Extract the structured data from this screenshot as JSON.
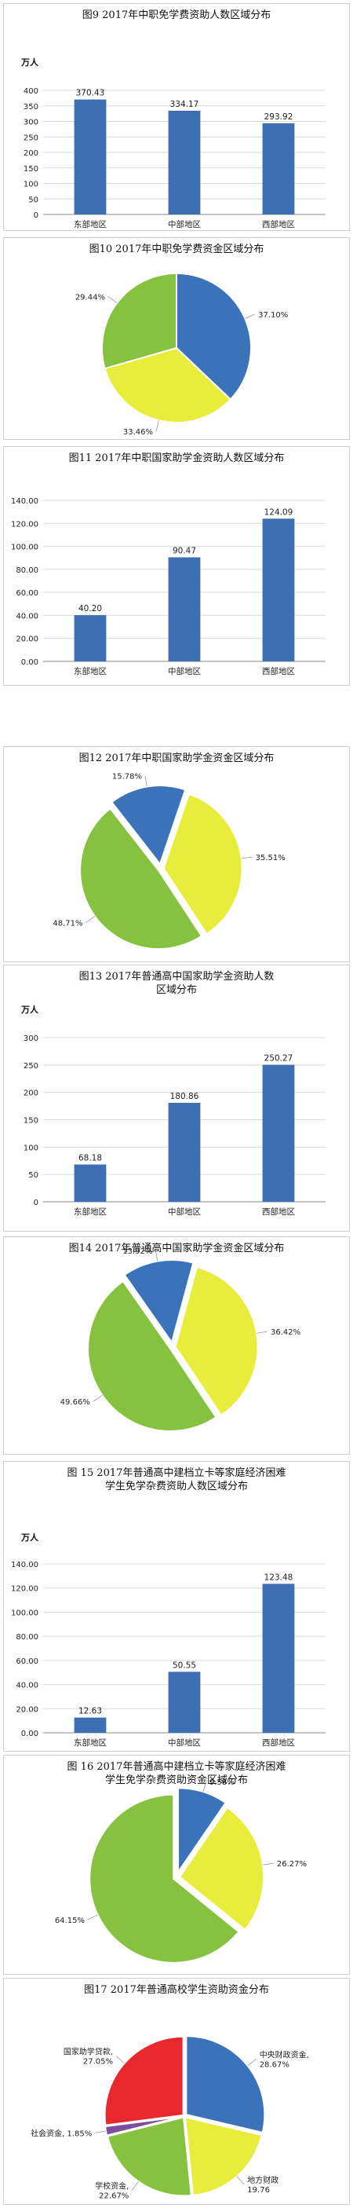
{
  "colors": {
    "bar": "#3e6fb3",
    "blue": "#3b73bb",
    "yellow": "#e8ec3a",
    "green": "#86c13f",
    "red": "#e8282e",
    "purple": "#7d4da0",
    "grid": "#d9d9d9",
    "axis": "#888888"
  },
  "panels": [
    {
      "title": "图9      2017年中职免学费资助人数区域分布",
      "unit": "万人"
    },
    {
      "title": "图10      2017年中职免学费资金区域分布",
      "unit": ""
    },
    {
      "title": "图11      2017年中职国家助学金资助人数区域分布",
      "unit": ""
    },
    {
      "title": "图12      2017年中职国家助学金资金区域分布",
      "unit": ""
    },
    {
      "title": "图13      2017年普通高中国家助学金资助人数\n区域分布",
      "unit": "万人"
    },
    {
      "title": "图14      2017年普通高中国家助学金资金区域分布",
      "unit": ""
    },
    {
      "title": "图 15      2017年普通高中建档立卡等家庭经济困难\n学生免学杂费资助人数区域分布",
      "unit": "万人"
    },
    {
      "title": "图 16      2017年普通高中建档立卡等家庭经济困难\n学生免学杂费资助资金区域分布",
      "unit": ""
    },
    {
      "title": "图17      2017年普通高校学生资助资金分布",
      "unit": ""
    }
  ],
  "chart_data": [
    {
      "type": "bar",
      "categories": [
        "东部地区",
        "中部地区",
        "西部地区"
      ],
      "values": [
        370.43,
        334.17,
        293.92
      ],
      "value_labels": [
        "370.43",
        "334.17",
        "293.92"
      ],
      "ylim": [
        0,
        400
      ],
      "yticks": [
        "0",
        "50",
        "100",
        "150",
        "200",
        "250",
        "300",
        "350",
        "400"
      ]
    },
    {
      "type": "pie",
      "slices": [
        {
          "label": "37.10%",
          "value": 37.1,
          "color": "blue"
        },
        {
          "label": "33.46%",
          "value": 33.46,
          "color": "yellow"
        },
        {
          "label": "29.44%",
          "value": 29.44,
          "color": "green"
        }
      ]
    },
    {
      "type": "bar",
      "categories": [
        "东部地区",
        "中部地区",
        "西部地区"
      ],
      "values": [
        40.2,
        90.47,
        124.09
      ],
      "value_labels": [
        "40.20",
        "90.47",
        "124.09"
      ],
      "ylim": [
        0,
        140
      ],
      "yticks": [
        "0.00",
        "20.00",
        "40.00",
        "60.00",
        "80.00",
        "100.00",
        "120.00",
        "140.00"
      ]
    },
    {
      "type": "pie",
      "slices": [
        {
          "label": "15.78%",
          "value": 15.78,
          "color": "blue"
        },
        {
          "label": "35.51%",
          "value": 35.51,
          "color": "yellow"
        },
        {
          "label": "48.71%",
          "value": 48.71,
          "color": "green"
        }
      ]
    },
    {
      "type": "bar",
      "categories": [
        "东部地区",
        "中部地区",
        "西部地区"
      ],
      "values": [
        68.18,
        180.86,
        250.27
      ],
      "value_labels": [
        "68.18",
        "180.86",
        "250.27"
      ],
      "ylim": [
        0,
        300
      ],
      "yticks": [
        "0",
        "50",
        "100",
        "150",
        "200",
        "250",
        "300"
      ]
    },
    {
      "type": "pie",
      "slices": [
        {
          "label": "13.92%",
          "value": 13.92,
          "color": "blue"
        },
        {
          "label": "36.42%",
          "value": 36.42,
          "color": "yellow"
        },
        {
          "label": "49.66%",
          "value": 49.66,
          "color": "green"
        }
      ]
    },
    {
      "type": "bar",
      "categories": [
        "东部地区",
        "中部地区",
        "西部地区"
      ],
      "values": [
        12.63,
        50.55,
        123.48
      ],
      "value_labels": [
        "12.63",
        "50.55",
        "123.48"
      ],
      "ylim": [
        0,
        140
      ],
      "yticks": [
        "0.00",
        "20.00",
        "40.00",
        "60.00",
        "80.00",
        "100.00",
        "120.00",
        "140.00"
      ]
    },
    {
      "type": "pie",
      "slices": [
        {
          "label": "9.58%",
          "value": 9.58,
          "color": "blue"
        },
        {
          "label": "26.27%",
          "value": 26.27,
          "color": "yellow"
        },
        {
          "label": "64.15%",
          "value": 64.15,
          "color": "green"
        }
      ]
    },
    {
      "type": "pie",
      "slices": [
        {
          "label": "中央财政资金,\n28.67%",
          "value": 28.67,
          "color": "blue"
        },
        {
          "label": "地方财政\n19.76",
          "value": 19.76,
          "color": "yellow"
        },
        {
          "label": "学校资金,\n22.67%",
          "value": 22.67,
          "color": "green"
        },
        {
          "label": "社会资金, 1.85%",
          "value": 1.85,
          "color": "purple"
        },
        {
          "label": "国家助学贷款,\n27.05%",
          "value": 27.05,
          "color": "red"
        }
      ]
    }
  ]
}
